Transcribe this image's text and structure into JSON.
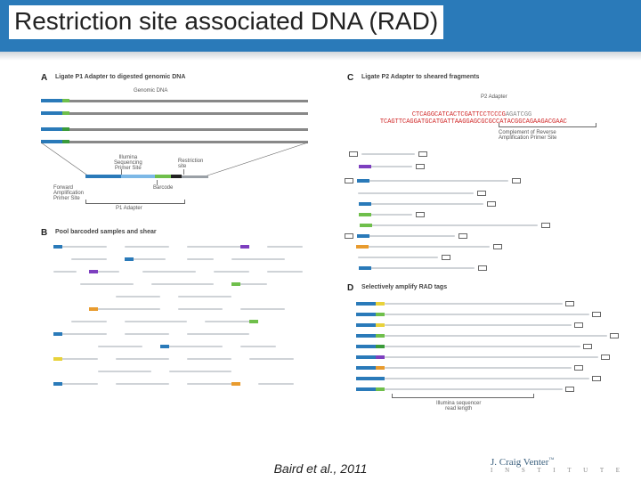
{
  "title": "Restriction site associated DNA (RAD)",
  "citation": "Baird et al., 2011",
  "logo": {
    "name": "J. Craig Venter",
    "sub": "I N S T I T U T E"
  },
  "colors": {
    "blue": "#2a7ab9",
    "grey": "#9aa0a6",
    "dgrey": "#6d7278",
    "green": "#6fbf4b",
    "green2": "#3a9b3a",
    "purple": "#7d3fbf",
    "orange": "#e89b2e",
    "yellow": "#e8d23a",
    "black": "#222222",
    "lgrey": "#cfd3d7"
  },
  "panels": {
    "A": {
      "letter": "A",
      "heading": "Ligate P1 Adapter to digested genomic DNA",
      "genomic": "Genomic DNA",
      "labels": {
        "fwd": "Forward\nAmplification\nPrimer Site",
        "illumina": "Illumina\nSequencing\nPrimer Site",
        "restriction": "Restriction\nsite",
        "barcode": "Barcode",
        "p1": "P1 Adapter"
      }
    },
    "B": {
      "letter": "B",
      "heading": "Pool barcoded samples and shear"
    },
    "C": {
      "letter": "C",
      "heading": "Ligate P2 Adapter to sheared fragments",
      "p2": "P2 Adapter",
      "seq1_red": "CTCAGGCATCACTCGATTCCTCCCG",
      "seq1_grey": "AGATCGG",
      "seq2_red": "TCAGTTCAGGATGCATGATTAAGGAGCGCGCCATACGGCAGAAGACGAAC",
      "compl": "Complement of Reverse\nAmplification Primer Site"
    },
    "D": {
      "letter": "D",
      "heading": "Selectively amplify RAD tags",
      "tail": "Illumina sequencer\nread length"
    }
  }
}
